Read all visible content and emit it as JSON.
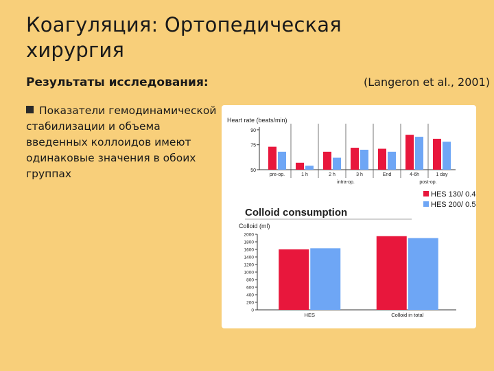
{
  "slide": {
    "title": "Коагуляция:  Ортопедическая хирургия",
    "subheading": "Результаты исследования:",
    "citation": "(Langeron et al., 2001)",
    "bullet": "Показатели гемодинамической стабилизации и объема введенных коллоидов имеют одинаковые значения  в обоих группах"
  },
  "colors": {
    "background": "#f8cf7a",
    "series1": "#e8173c",
    "series2": "#6ea6f5"
  },
  "legend": [
    {
      "label": "HES 130/ 0.4",
      "color": "#e8173c"
    },
    {
      "label": "HES 200/ 0.5",
      "color": "#6ea6f5"
    }
  ],
  "chart_data": [
    {
      "type": "bar",
      "ylabel": "Heart rate (beats/min)",
      "yticks": [
        50,
        75,
        90
      ],
      "ylim": [
        50,
        92
      ],
      "categories": [
        "pre-op.",
        "1 h",
        "2 h",
        "3 h",
        "End",
        "4-6h",
        "1 day"
      ],
      "group_labels": [
        {
          "text": "intra-op.",
          "span": [
            1,
            4
          ]
        },
        {
          "text": "post-op.",
          "span": [
            5,
            6
          ]
        }
      ],
      "series": [
        {
          "name": "HES 130/ 0.4",
          "values": [
            73,
            57,
            68,
            72,
            71,
            85,
            81
          ]
        },
        {
          "name": "HES 200/ 0.5",
          "values": [
            68,
            54,
            62,
            70,
            68,
            83,
            78
          ]
        }
      ],
      "grid": false
    },
    {
      "type": "bar",
      "title": "Colloid consumption",
      "ylabel": "Colloid (ml)",
      "yticks": [
        0,
        200,
        400,
        600,
        800,
        1000,
        1200,
        1400,
        1600,
        1800,
        2000
      ],
      "ylim": [
        0,
        2000
      ],
      "categories": [
        "HES",
        "Colloid in total"
      ],
      "series": [
        {
          "name": "HES 130/ 0.4",
          "values": [
            1600,
            1950
          ]
        },
        {
          "name": "HES 200/ 0.5",
          "values": [
            1630,
            1900
          ]
        }
      ],
      "grid": false
    }
  ]
}
